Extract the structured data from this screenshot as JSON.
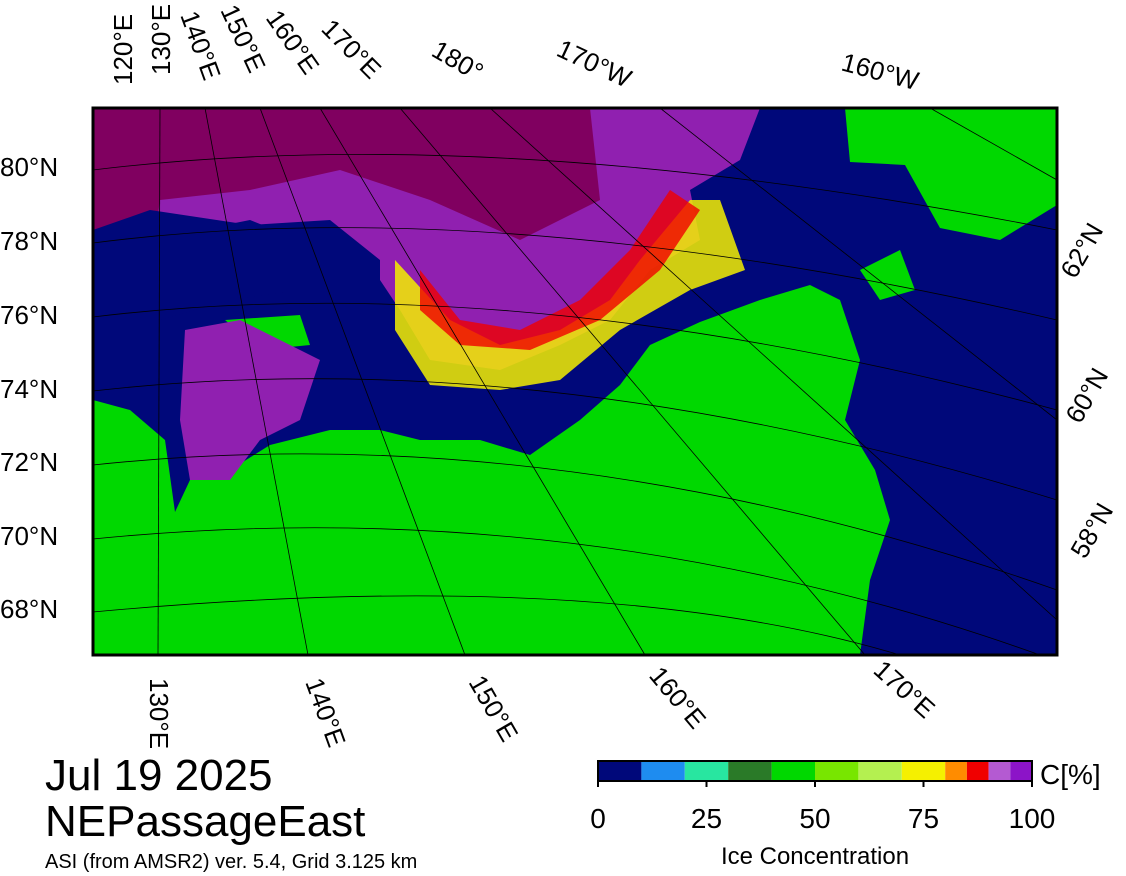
{
  "map": {
    "date": "Jul 19 2025",
    "region": "NEPassageEast",
    "source": "ASI (from AMSR2) ver. 5.4,  Grid 3.125 km",
    "top_labels": [
      "120°E",
      "130°E",
      "140°E",
      "150°E",
      "160°E",
      "170°E",
      "180°",
      "170°W",
      "160°W"
    ],
    "left_labels": [
      "80°N",
      "78°N",
      "76°N",
      "74°N",
      "72°N",
      "70°N",
      "68°N"
    ],
    "right_labels": [
      "62°N",
      "60°N",
      "58°N"
    ],
    "bottom_labels": [
      "130°E",
      "140°E",
      "150°E",
      "160°E",
      "170°E"
    ]
  },
  "colorbar": {
    "label": "Ice Concentration",
    "unit": "C[%]",
    "range": [
      0,
      100
    ],
    "ticks": [
      0,
      25,
      50,
      75,
      100
    ],
    "bounds": [
      0,
      10,
      20,
      30,
      40,
      50,
      60,
      70,
      80,
      85,
      90,
      95,
      100
    ],
    "colors": [
      "#00087a",
      "#1e8cf0",
      "#28e6a0",
      "#2a7a28",
      "#00d800",
      "#78e600",
      "#b4f050",
      "#f5f000",
      "#ff8c00",
      "#f00000",
      "#b45ad2",
      "#8c14c8"
    ]
  }
}
